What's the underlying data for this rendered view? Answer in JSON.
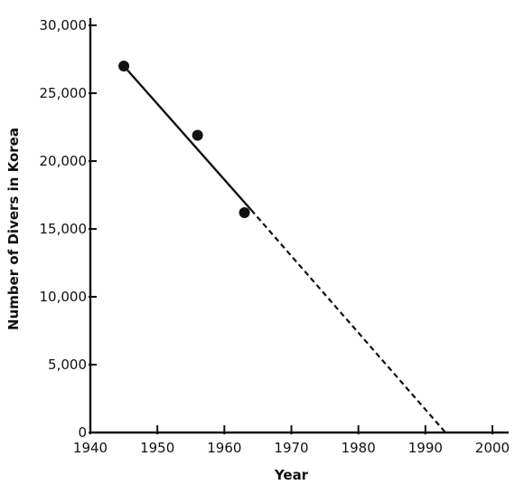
{
  "chart_data": {
    "type": "scatter",
    "title": "",
    "xlabel": "Year",
    "ylabel": "Number of Divers in Korea",
    "xlim": [
      1940,
      2000
    ],
    "ylim": [
      0,
      30000
    ],
    "x_ticks": [
      1940,
      1950,
      1960,
      1970,
      1980,
      1990,
      2000
    ],
    "x_tick_labels": [
      "1940",
      "1950",
      "1960",
      "1970",
      "1980",
      "1990",
      "2000"
    ],
    "y_ticks": [
      0,
      5000,
      10000,
      15000,
      20000,
      25000,
      30000
    ],
    "y_tick_labels": [
      "0",
      "5,000",
      "10,000",
      "15,000",
      "20,000",
      "25,000",
      "30,000"
    ],
    "grid": false,
    "series": [
      {
        "x": [
          1945,
          1956,
          1963
        ],
        "y": [
          27000,
          21900,
          16200
        ]
      }
    ],
    "trend_line": {
      "solid_segment": {
        "x": [
          1945,
          1964
        ],
        "y": [
          27000,
          16400
        ]
      },
      "dashed_extrapolation": {
        "x": [
          1964,
          1993
        ],
        "y": [
          16400,
          0
        ]
      }
    }
  }
}
